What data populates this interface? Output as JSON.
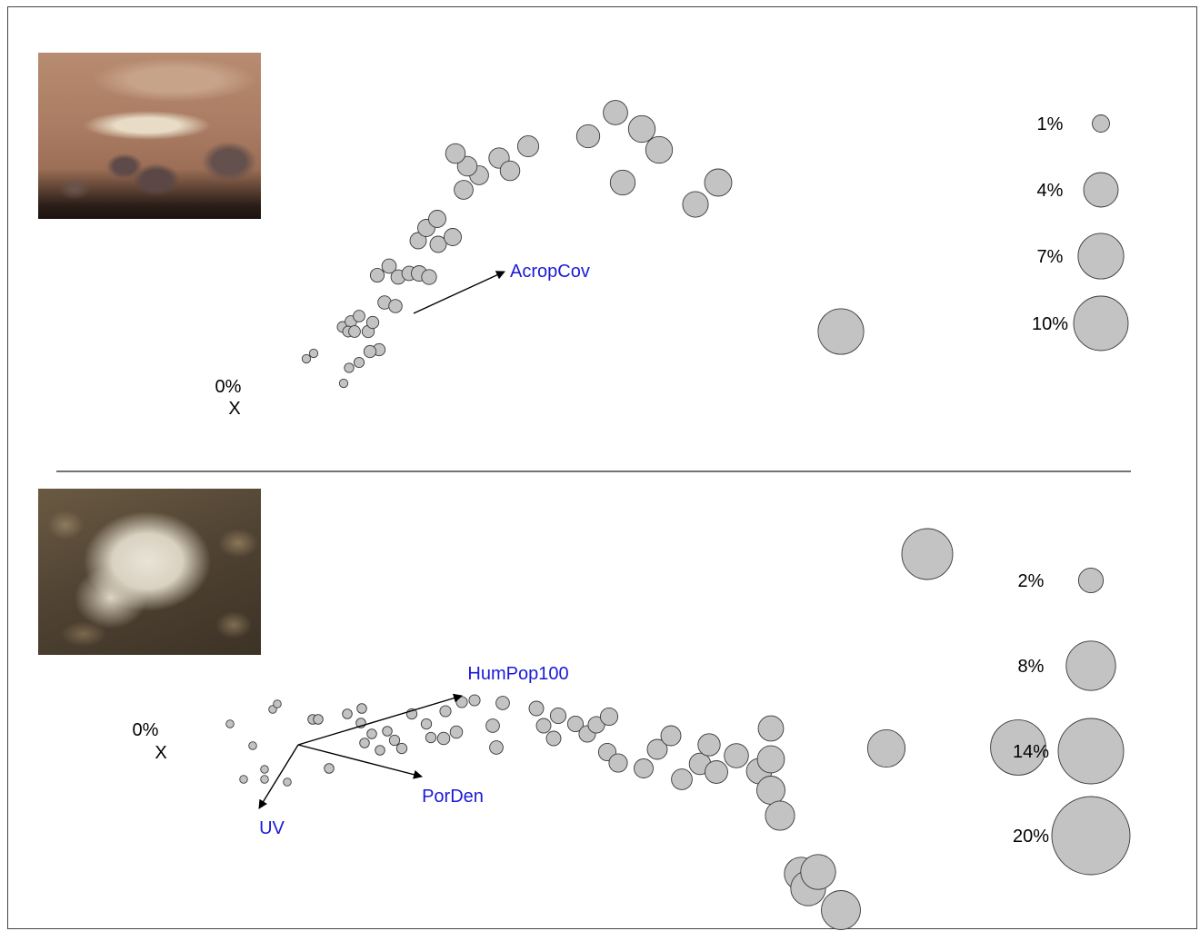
{
  "colors": {
    "bubble_fill": "#c3c3c3",
    "bubble_stroke": "#3a3a3a",
    "vector_label": "#1a1ad6",
    "divider": "#444444"
  },
  "panels": {
    "top": {
      "photo_icon": "acropora-table-coral-photo",
      "origin_label": "0%",
      "origin_marker": "X",
      "vector_labels": [
        "AcropCov"
      ],
      "legend": [
        "1%",
        "4%",
        "7%",
        "10%"
      ]
    },
    "bottom": {
      "photo_icon": "bleached-porites-coral-photo",
      "origin_label": "0%",
      "origin_marker": "X",
      "vector_labels": [
        "HumPop100",
        "PorDen",
        "UV"
      ],
      "legend": [
        "2%",
        "8%",
        "14%",
        "20%"
      ]
    }
  },
  "chart_data": [
    {
      "type": "scatter",
      "subtype": "bubble-ordination",
      "title": "",
      "xlabel": "",
      "ylabel": "",
      "grid": false,
      "legend_position": "right",
      "size_legend": [
        {
          "label": "1%",
          "value": 1
        },
        {
          "label": "4%",
          "value": 4
        },
        {
          "label": "7%",
          "value": 7
        },
        {
          "label": "10%",
          "value": 10
        }
      ],
      "vectors": [
        {
          "label": "AcropCov",
          "dx": 1.0,
          "dy": 0.46
        }
      ],
      "points": [
        {
          "x": -1.18,
          "y": -0.5,
          "size": 0.25
        },
        {
          "x": -1.1,
          "y": -0.44,
          "size": 0.25
        },
        {
          "x": -0.77,
          "y": -0.77,
          "size": 0.25
        },
        {
          "x": -0.71,
          "y": -0.6,
          "size": 0.3
        },
        {
          "x": -0.6,
          "y": -0.54,
          "size": 0.35
        },
        {
          "x": -0.78,
          "y": -0.15,
          "size": 0.4
        },
        {
          "x": -0.69,
          "y": -0.09,
          "size": 0.45
        },
        {
          "x": -0.72,
          "y": -0.2,
          "size": 0.4
        },
        {
          "x": -0.6,
          "y": -0.03,
          "size": 0.45
        },
        {
          "x": -0.65,
          "y": -0.2,
          "size": 0.45
        },
        {
          "x": -0.5,
          "y": -0.2,
          "size": 0.5
        },
        {
          "x": -0.45,
          "y": -0.1,
          "size": 0.5
        },
        {
          "x": -0.38,
          "y": -0.4,
          "size": 0.5
        },
        {
          "x": -0.48,
          "y": -0.42,
          "size": 0.5
        },
        {
          "x": -0.32,
          "y": 0.12,
          "size": 0.6
        },
        {
          "x": -0.2,
          "y": 0.08,
          "size": 0.6
        },
        {
          "x": -0.4,
          "y": 0.42,
          "size": 0.65
        },
        {
          "x": -0.27,
          "y": 0.52,
          "size": 0.7
        },
        {
          "x": -0.17,
          "y": 0.4,
          "size": 0.7
        },
        {
          "x": -0.05,
          "y": 0.44,
          "size": 0.7
        },
        {
          "x": 0.06,
          "y": 0.44,
          "size": 0.8
        },
        {
          "x": 0.17,
          "y": 0.4,
          "size": 0.75
        },
        {
          "x": 0.05,
          "y": 0.8,
          "size": 0.9
        },
        {
          "x": 0.27,
          "y": 0.76,
          "size": 0.9
        },
        {
          "x": 0.43,
          "y": 0.84,
          "size": 1.0
        },
        {
          "x": 0.14,
          "y": 0.94,
          "size": 1.0
        },
        {
          "x": 0.26,
          "y": 1.04,
          "size": 1.0
        },
        {
          "x": 0.55,
          "y": 1.36,
          "size": 1.2
        },
        {
          "x": 0.72,
          "y": 1.52,
          "size": 1.2
        },
        {
          "x": 0.59,
          "y": 1.62,
          "size": 1.3
        },
        {
          "x": 0.46,
          "y": 1.76,
          "size": 1.3
        },
        {
          "x": 0.94,
          "y": 1.71,
          "size": 1.4
        },
        {
          "x": 1.06,
          "y": 1.57,
          "size": 1.3
        },
        {
          "x": 1.26,
          "y": 1.84,
          "size": 1.5
        },
        {
          "x": 1.92,
          "y": 1.95,
          "size": 1.8
        },
        {
          "x": 2.22,
          "y": 2.21,
          "size": 2.0
        },
        {
          "x": 2.51,
          "y": 2.03,
          "size": 2.4
        },
        {
          "x": 2.7,
          "y": 1.8,
          "size": 2.4
        },
        {
          "x": 2.3,
          "y": 1.44,
          "size": 2.1
        },
        {
          "x": 3.1,
          "y": 1.2,
          "size": 2.2
        },
        {
          "x": 3.35,
          "y": 1.44,
          "size": 2.5
        },
        {
          "x": 4.7,
          "y": -0.2,
          "size": 7.0
        }
      ]
    },
    {
      "type": "scatter",
      "subtype": "bubble-ordination",
      "title": "",
      "xlabel": "",
      "ylabel": "",
      "grid": false,
      "legend_position": "right",
      "size_legend": [
        {
          "label": "2%",
          "value": 2
        },
        {
          "label": "8%",
          "value": 8
        },
        {
          "label": "14%",
          "value": 14
        },
        {
          "label": "20%",
          "value": 20
        }
      ],
      "vectors": [
        {
          "label": "HumPop100",
          "dx": 1.8,
          "dy": 0.54
        },
        {
          "label": "PorDen",
          "dx": 1.36,
          "dy": -0.35
        },
        {
          "label": "UV",
          "dx": -0.43,
          "dy": -0.7
        }
      ],
      "points": [
        {
          "x": -0.75,
          "y": 0.23,
          "size": 0.2
        },
        {
          "x": -0.28,
          "y": 0.39,
          "size": 0.2
        },
        {
          "x": -0.23,
          "y": 0.45,
          "size": 0.2
        },
        {
          "x": -0.5,
          "y": -0.01,
          "size": 0.2
        },
        {
          "x": -0.6,
          "y": -0.38,
          "size": 0.2
        },
        {
          "x": -0.37,
          "y": -0.27,
          "size": 0.2
        },
        {
          "x": -0.37,
          "y": -0.38,
          "size": 0.2
        },
        {
          "x": -0.12,
          "y": -0.41,
          "size": 0.2
        },
        {
          "x": 0.16,
          "y": 0.28,
          "size": 0.3
        },
        {
          "x": 0.22,
          "y": 0.28,
          "size": 0.3
        },
        {
          "x": 0.34,
          "y": -0.26,
          "size": 0.3
        },
        {
          "x": 0.54,
          "y": 0.34,
          "size": 0.3
        },
        {
          "x": 0.7,
          "y": 0.4,
          "size": 0.3
        },
        {
          "x": 0.69,
          "y": 0.24,
          "size": 0.3
        },
        {
          "x": 0.73,
          "y": 0.02,
          "size": 0.3
        },
        {
          "x": 0.81,
          "y": 0.12,
          "size": 0.3
        },
        {
          "x": 0.9,
          "y": -0.06,
          "size": 0.3
        },
        {
          "x": 0.98,
          "y": 0.15,
          "size": 0.3
        },
        {
          "x": 1.06,
          "y": 0.05,
          "size": 0.35
        },
        {
          "x": 1.14,
          "y": -0.04,
          "size": 0.35
        },
        {
          "x": 1.25,
          "y": 0.34,
          "size": 0.35
        },
        {
          "x": 1.41,
          "y": 0.23,
          "size": 0.35
        },
        {
          "x": 1.46,
          "y": 0.08,
          "size": 0.35
        },
        {
          "x": 1.62,
          "y": 0.37,
          "size": 0.4
        },
        {
          "x": 1.8,
          "y": 0.47,
          "size": 0.4
        },
        {
          "x": 1.94,
          "y": 0.49,
          "size": 0.4
        },
        {
          "x": 1.74,
          "y": 0.14,
          "size": 0.5
        },
        {
          "x": 1.6,
          "y": 0.07,
          "size": 0.5
        },
        {
          "x": 2.14,
          "y": 0.21,
          "size": 0.6
        },
        {
          "x": 2.18,
          "y": -0.03,
          "size": 0.6
        },
        {
          "x": 2.25,
          "y": 0.46,
          "size": 0.6
        },
        {
          "x": 2.62,
          "y": 0.4,
          "size": 0.7
        },
        {
          "x": 2.7,
          "y": 0.21,
          "size": 0.7
        },
        {
          "x": 2.81,
          "y": 0.07,
          "size": 0.7
        },
        {
          "x": 2.86,
          "y": 0.32,
          "size": 0.8
        },
        {
          "x": 3.05,
          "y": 0.23,
          "size": 0.8
        },
        {
          "x": 3.18,
          "y": 0.12,
          "size": 0.9
        },
        {
          "x": 3.28,
          "y": 0.22,
          "size": 0.9
        },
        {
          "x": 3.42,
          "y": 0.31,
          "size": 1.0
        },
        {
          "x": 3.4,
          "y": -0.08,
          "size": 1.0
        },
        {
          "x": 3.52,
          "y": -0.2,
          "size": 1.1
        },
        {
          "x": 3.8,
          "y": -0.26,
          "size": 1.2
        },
        {
          "x": 3.95,
          "y": -0.05,
          "size": 1.3
        },
        {
          "x": 4.1,
          "y": 0.1,
          "size": 1.3
        },
        {
          "x": 4.22,
          "y": -0.38,
          "size": 1.4
        },
        {
          "x": 4.42,
          "y": -0.21,
          "size": 1.5
        },
        {
          "x": 4.52,
          "y": 0.0,
          "size": 1.6
        },
        {
          "x": 4.6,
          "y": -0.3,
          "size": 1.7
        },
        {
          "x": 4.82,
          "y": -0.12,
          "size": 1.9
        },
        {
          "x": 5.07,
          "y": -0.29,
          "size": 2.1
        },
        {
          "x": 5.2,
          "y": 0.18,
          "size": 2.1
        },
        {
          "x": 5.2,
          "y": -0.16,
          "size": 2.4
        },
        {
          "x": 5.2,
          "y": -0.5,
          "size": 2.6
        },
        {
          "x": 5.3,
          "y": -0.78,
          "size": 2.8
        },
        {
          "x": 5.53,
          "y": -1.42,
          "size": 3.6
        },
        {
          "x": 5.61,
          "y": -1.58,
          "size": 4.0
        },
        {
          "x": 5.97,
          "y": -1.82,
          "size": 5.0
        },
        {
          "x": 5.72,
          "y": -1.4,
          "size": 4.0
        },
        {
          "x": 6.47,
          "y": -0.04,
          "size": 4.6
        },
        {
          "x": 6.92,
          "y": 2.1,
          "size": 8.5
        },
        {
          "x": 7.92,
          "y": -0.03,
          "size": 10.0
        }
      ]
    }
  ]
}
